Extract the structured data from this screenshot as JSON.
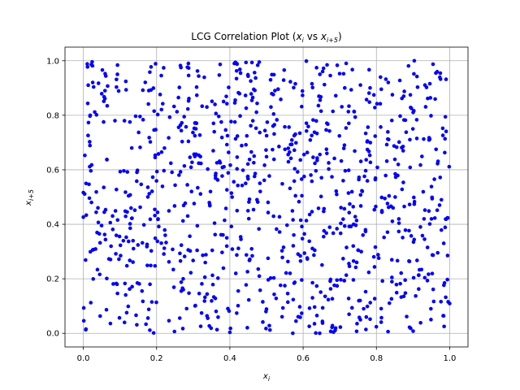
{
  "chart_data": {
    "type": "scatter",
    "title": "LCG Correlation Plot (x_i vs x_{i+5})",
    "title_parts": {
      "prefix": "LCG Correlation Plot (",
      "x": "x",
      "x_sub": "i",
      "mid": " vs ",
      "y": "x",
      "y_sub": "i+5",
      "suffix": ")"
    },
    "xlabel": {
      "main": "x",
      "sub": "i"
    },
    "ylabel": {
      "main": "x",
      "sub": "i+5"
    },
    "xlim": [
      -0.05,
      1.05
    ],
    "ylim": [
      -0.05,
      1.05
    ],
    "xticks": [
      0.0,
      0.2,
      0.4,
      0.6,
      0.8,
      1.0
    ],
    "yticks": [
      0.0,
      0.2,
      0.4,
      0.6,
      0.8,
      1.0
    ],
    "xtick_labels": [
      "0.0",
      "0.2",
      "0.4",
      "0.6",
      "0.8",
      "1.0"
    ],
    "ytick_labels": [
      "0.0",
      "0.2",
      "0.4",
      "0.6",
      "0.8",
      "1.0"
    ],
    "grid": true,
    "marker_color": "#0000ff",
    "n_points": 1000,
    "lcg_seed": 12345,
    "lcg_lag": 5
  }
}
